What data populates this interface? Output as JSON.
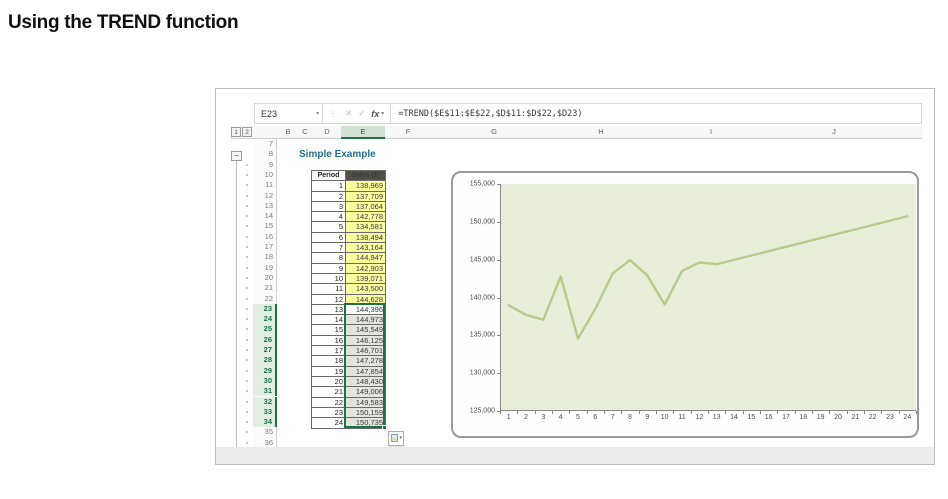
{
  "page": {
    "heading": "Using the TREND function"
  },
  "excel": {
    "name_box": "E23",
    "formula": "=TREND($E$11:$E$22,$D$11:$D$22,$D23)",
    "fx_label": "fx",
    "cancel_glyph": "✕",
    "enter_glyph": "✓",
    "drag_dots_glyph": "⋮",
    "chevron_glyph": "▾",
    "outline_levels": [
      "1",
      "2"
    ],
    "collapse_button": "−",
    "column_headers": [
      "B",
      "C",
      "D",
      "E",
      "F",
      "G",
      "H",
      "I",
      "J"
    ],
    "selected_column": "E",
    "row_start": 7,
    "row_end": 36,
    "selected_rows": [
      23,
      34
    ],
    "sheet_title": "Simple Example",
    "table": {
      "headers": [
        "Period",
        "Sales ($)"
      ],
      "rows": [
        [
          1,
          "138,969"
        ],
        [
          2,
          "137,709"
        ],
        [
          3,
          "137,064"
        ],
        [
          4,
          "142,778"
        ],
        [
          5,
          "134,581"
        ],
        [
          6,
          "138,494"
        ],
        [
          7,
          "143,164"
        ],
        [
          8,
          "144,947"
        ],
        [
          9,
          "142,903"
        ],
        [
          10,
          "139,071"
        ],
        [
          11,
          "143,500"
        ],
        [
          12,
          "144,628"
        ],
        [
          13,
          "144,396"
        ],
        [
          14,
          "144,973"
        ],
        [
          15,
          "145,549"
        ],
        [
          16,
          "146,125"
        ],
        [
          17,
          "146,701"
        ],
        [
          18,
          "147,278"
        ],
        [
          19,
          "147,854"
        ],
        [
          20,
          "148,430"
        ],
        [
          21,
          "149,006"
        ],
        [
          22,
          "149,583"
        ],
        [
          23,
          "150,159"
        ],
        [
          24,
          "150,735"
        ]
      ],
      "yellow_through_period": 12,
      "active_period": 13
    }
  },
  "chart_data": {
    "type": "line",
    "title": "",
    "xlabel": "",
    "ylabel": "",
    "x": [
      1,
      2,
      3,
      4,
      5,
      6,
      7,
      8,
      9,
      10,
      11,
      12,
      13,
      14,
      15,
      16,
      17,
      18,
      19,
      20,
      21,
      22,
      23,
      24
    ],
    "series": [
      {
        "name": "Sales ($)",
        "values": [
          138969,
          137709,
          137064,
          142778,
          134581,
          138494,
          143164,
          144947,
          142903,
          139071,
          143500,
          144628,
          144396,
          144973,
          145549,
          146125,
          146701,
          147278,
          147854,
          148430,
          149006,
          149583,
          150159,
          150735
        ]
      }
    ],
    "ylim": [
      125000,
      155000
    ],
    "ytick_step": 5000,
    "yticks": [
      {
        "value": 125000,
        "label": "125,000"
      },
      {
        "value": 130000,
        "label": "130,000"
      },
      {
        "value": 135000,
        "label": "135,000"
      },
      {
        "value": 140000,
        "label": "140,000"
      },
      {
        "value": 145000,
        "label": "145,000"
      },
      {
        "value": 150000,
        "label": "150,000"
      },
      {
        "value": 155000,
        "label": "155,000"
      }
    ],
    "grid": false,
    "legend": false
  },
  "colors": {
    "selection_green": "#1f7244",
    "title_blue": "#25708e",
    "table_header_bg": "#514f48",
    "yellow_fill": "#f9fb9e",
    "plot_bg": "#e9eeda",
    "line_color": "#b6cc8e"
  }
}
